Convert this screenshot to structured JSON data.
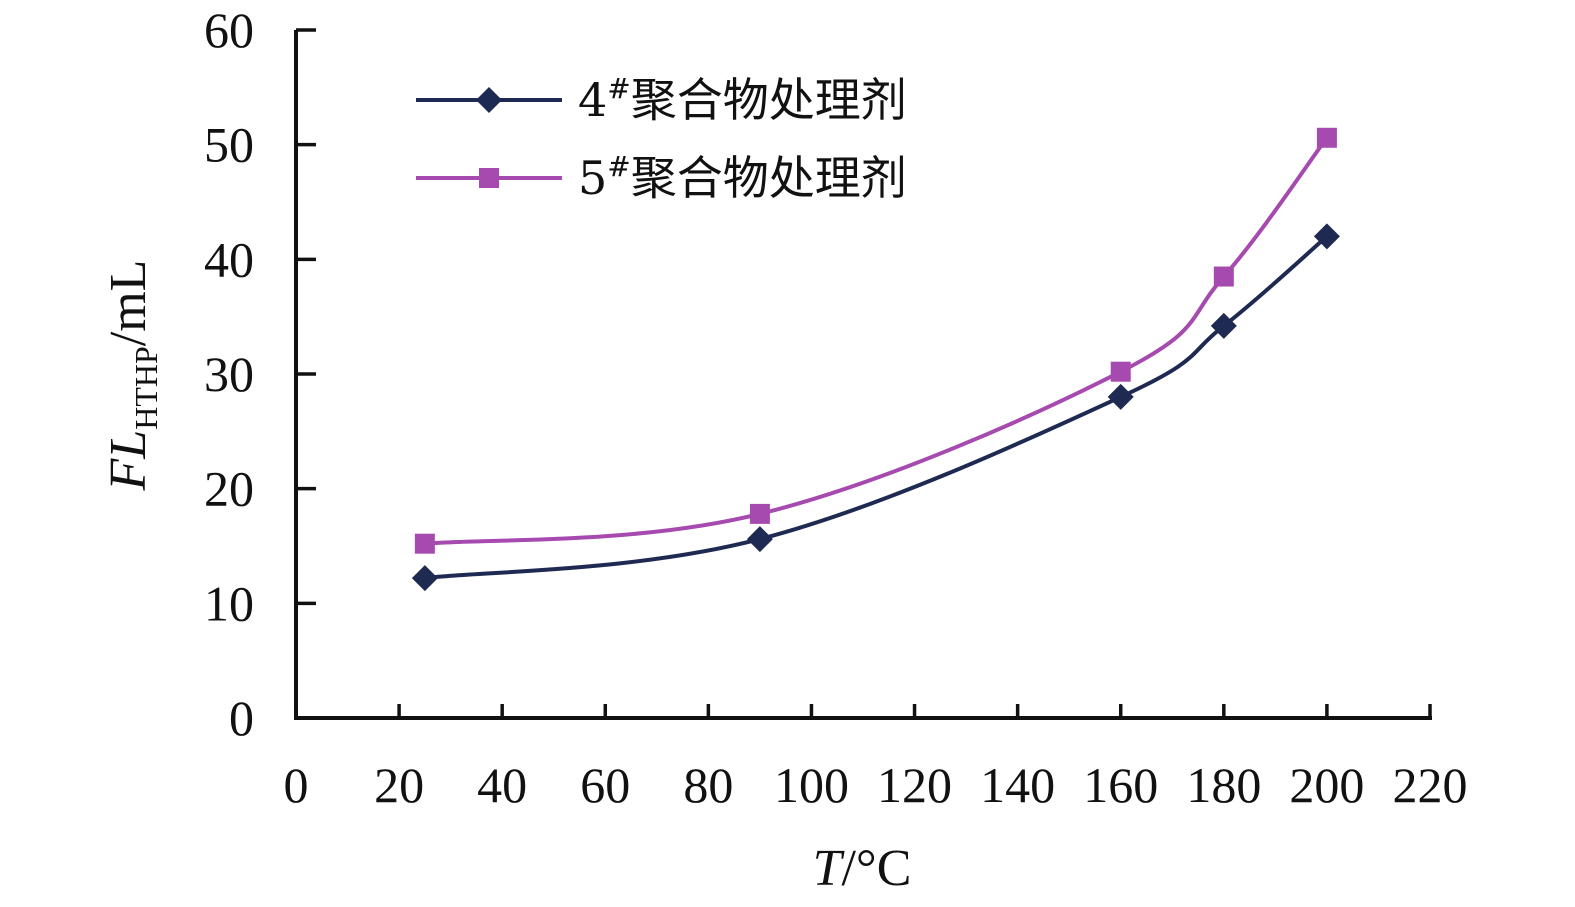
{
  "chart_data": {
    "type": "line",
    "title": "",
    "xlabel": {
      "italic": "T",
      "rest": "/°C"
    },
    "ylabel": {
      "italic": "FL",
      "sub": "HTHP",
      "rest": "/mL"
    },
    "xlim": [
      0,
      220
    ],
    "ylim": [
      0,
      60
    ],
    "x_ticks": [
      0,
      20,
      40,
      60,
      80,
      100,
      120,
      140,
      160,
      180,
      200,
      220
    ],
    "y_ticks": [
      0,
      10,
      20,
      30,
      40,
      50,
      60
    ],
    "grid": false,
    "legend_position": "top-left",
    "series": [
      {
        "name": {
          "prefix": "4",
          "sup": "#",
          "rest": "聚合物处理剂"
        },
        "marker": "diamond",
        "color": "#1f2a52",
        "x": [
          25,
          90,
          160,
          180,
          200
        ],
        "y": [
          12.2,
          15.6,
          28.0,
          34.2,
          42.0
        ]
      },
      {
        "name": {
          "prefix": "5",
          "sup": "#",
          "rest": "聚合物处理剂"
        },
        "marker": "square",
        "color": "#a64ab0",
        "x": [
          25,
          90,
          160,
          180,
          200
        ],
        "y": [
          15.2,
          17.8,
          30.2,
          38.5,
          50.6
        ]
      }
    ]
  }
}
